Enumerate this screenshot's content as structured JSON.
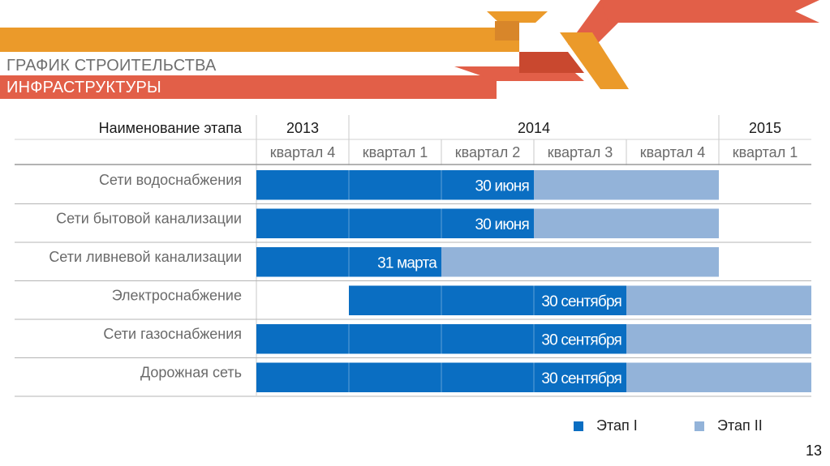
{
  "title": {
    "line1": "ГРАФИК СТРОИТЕЛЬСТВА",
    "line2": "ИНФРАСТРУКТУРЫ"
  },
  "page_number": "13",
  "colors": {
    "phase1": "#0a6ec2",
    "phase2": "#93b3d9",
    "ribbon_orange": "#eb9a2a",
    "ribbon_red": "#e25f48"
  },
  "chart_data": {
    "type": "gantt",
    "stage_header": "Наименование этапа",
    "years": [
      {
        "label": "2013",
        "span": 1
      },
      {
        "label": "2014",
        "span": 4
      },
      {
        "label": "2015",
        "span": 1
      }
    ],
    "quarters": [
      "квартал 4",
      "квартал 1",
      "квартал 2",
      "квартал 3",
      "квартал 4",
      "квартал 1"
    ],
    "legend": [
      {
        "label": "Этап I",
        "color": "#0a6ec2"
      },
      {
        "label": "Этап II",
        "color": "#93b3d9"
      }
    ],
    "rows": [
      {
        "name": "Сети водоснабжения",
        "phase1_start": 0,
        "phase1_end": 3.0,
        "phase2_end": 5.0,
        "label": "30 июня"
      },
      {
        "name": "Сети бытовой канализации",
        "phase1_start": 0,
        "phase1_end": 3.0,
        "phase2_end": 5.0,
        "label": "30 июня"
      },
      {
        "name": "Сети ливневой канализации",
        "phase1_start": 0,
        "phase1_end": 2.0,
        "phase2_end": 5.0,
        "label": "31 марта"
      },
      {
        "name": "Электроснабжение",
        "phase1_start": 1.0,
        "phase1_end": 4.0,
        "phase2_end": 6.0,
        "label": "30 сентября"
      },
      {
        "name": "Сети газоснабжения",
        "phase1_start": 0,
        "phase1_end": 4.0,
        "phase2_end": 6.0,
        "label": "30 сентября"
      },
      {
        "name": "Дорожная сеть",
        "phase1_start": 0,
        "phase1_end": 4.0,
        "phase2_end": 6.0,
        "label": "30 сентября"
      }
    ]
  }
}
